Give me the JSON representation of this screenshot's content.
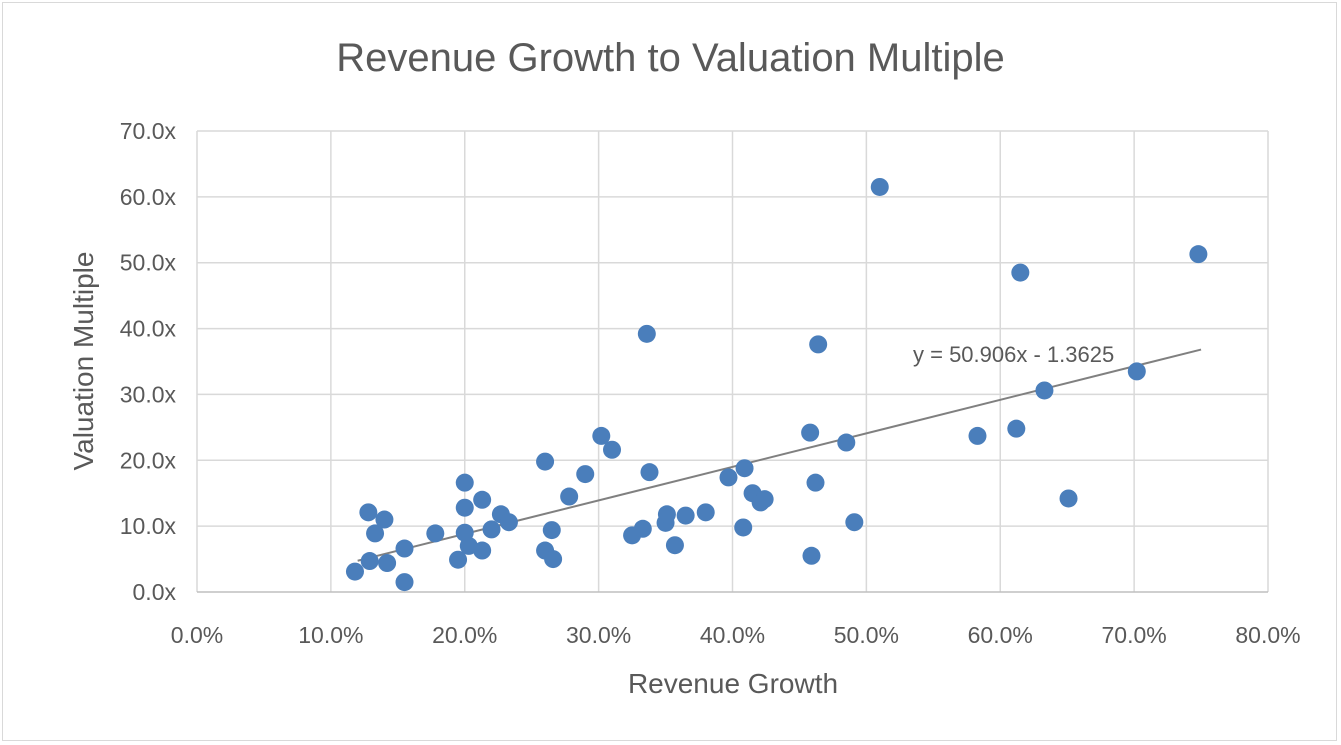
{
  "chart_data": {
    "type": "scatter",
    "title": "Revenue Growth to Valuation Multiple",
    "xlabel": "Revenue Growth",
    "ylabel": "Valuation Multiple",
    "xlim": [
      0,
      0.8
    ],
    "ylim": [
      0,
      70
    ],
    "x_ticks": [
      "0.0%",
      "10.0%",
      "20.0%",
      "30.0%",
      "40.0%",
      "50.0%",
      "60.0%",
      "70.0%",
      "80.0%"
    ],
    "y_ticks": [
      "0.0x",
      "10.0x",
      "20.0x",
      "30.0x",
      "40.0x",
      "50.0x",
      "60.0x",
      "70.0x"
    ],
    "grid": true,
    "marker_color": "#4a7ebb",
    "trendline": {
      "type": "linear",
      "equation": "y = 50.906x - 1.3625",
      "slope": 50.906,
      "intercept": -1.3625,
      "x_range": [
        0.12,
        0.75
      ],
      "color": "#808080"
    },
    "series": [
      {
        "points": [
          [
            0.118,
            3.1
          ],
          [
            0.128,
            12.1
          ],
          [
            0.129,
            4.7
          ],
          [
            0.133,
            8.9
          ],
          [
            0.14,
            11.0
          ],
          [
            0.142,
            4.4
          ],
          [
            0.155,
            1.5
          ],
          [
            0.155,
            6.6
          ],
          [
            0.178,
            8.9
          ],
          [
            0.195,
            4.9
          ],
          [
            0.2,
            16.6
          ],
          [
            0.2,
            12.8
          ],
          [
            0.2,
            9.0
          ],
          [
            0.203,
            7.0
          ],
          [
            0.213,
            14.0
          ],
          [
            0.213,
            6.3
          ],
          [
            0.22,
            9.5
          ],
          [
            0.227,
            11.8
          ],
          [
            0.233,
            10.6
          ],
          [
            0.26,
            19.8
          ],
          [
            0.26,
            6.3
          ],
          [
            0.265,
            9.4
          ],
          [
            0.266,
            5.0
          ],
          [
            0.278,
            14.5
          ],
          [
            0.29,
            17.9
          ],
          [
            0.302,
            23.7
          ],
          [
            0.31,
            21.6
          ],
          [
            0.325,
            8.6
          ],
          [
            0.333,
            9.6
          ],
          [
            0.336,
            39.2
          ],
          [
            0.338,
            18.2
          ],
          [
            0.35,
            10.5
          ],
          [
            0.351,
            11.8
          ],
          [
            0.357,
            7.1
          ],
          [
            0.365,
            11.6
          ],
          [
            0.38,
            12.1
          ],
          [
            0.397,
            17.4
          ],
          [
            0.408,
            9.8
          ],
          [
            0.409,
            18.8
          ],
          [
            0.415,
            15.0
          ],
          [
            0.421,
            13.6
          ],
          [
            0.424,
            14.1
          ],
          [
            0.458,
            24.2
          ],
          [
            0.459,
            5.5
          ],
          [
            0.462,
            16.6
          ],
          [
            0.464,
            37.6
          ],
          [
            0.485,
            22.7
          ],
          [
            0.491,
            10.6
          ],
          [
            0.51,
            61.5
          ],
          [
            0.583,
            23.7
          ],
          [
            0.612,
            24.8
          ],
          [
            0.615,
            48.5
          ],
          [
            0.633,
            30.6
          ],
          [
            0.651,
            14.2
          ],
          [
            0.702,
            33.5
          ],
          [
            0.748,
            51.3
          ]
        ]
      }
    ]
  }
}
